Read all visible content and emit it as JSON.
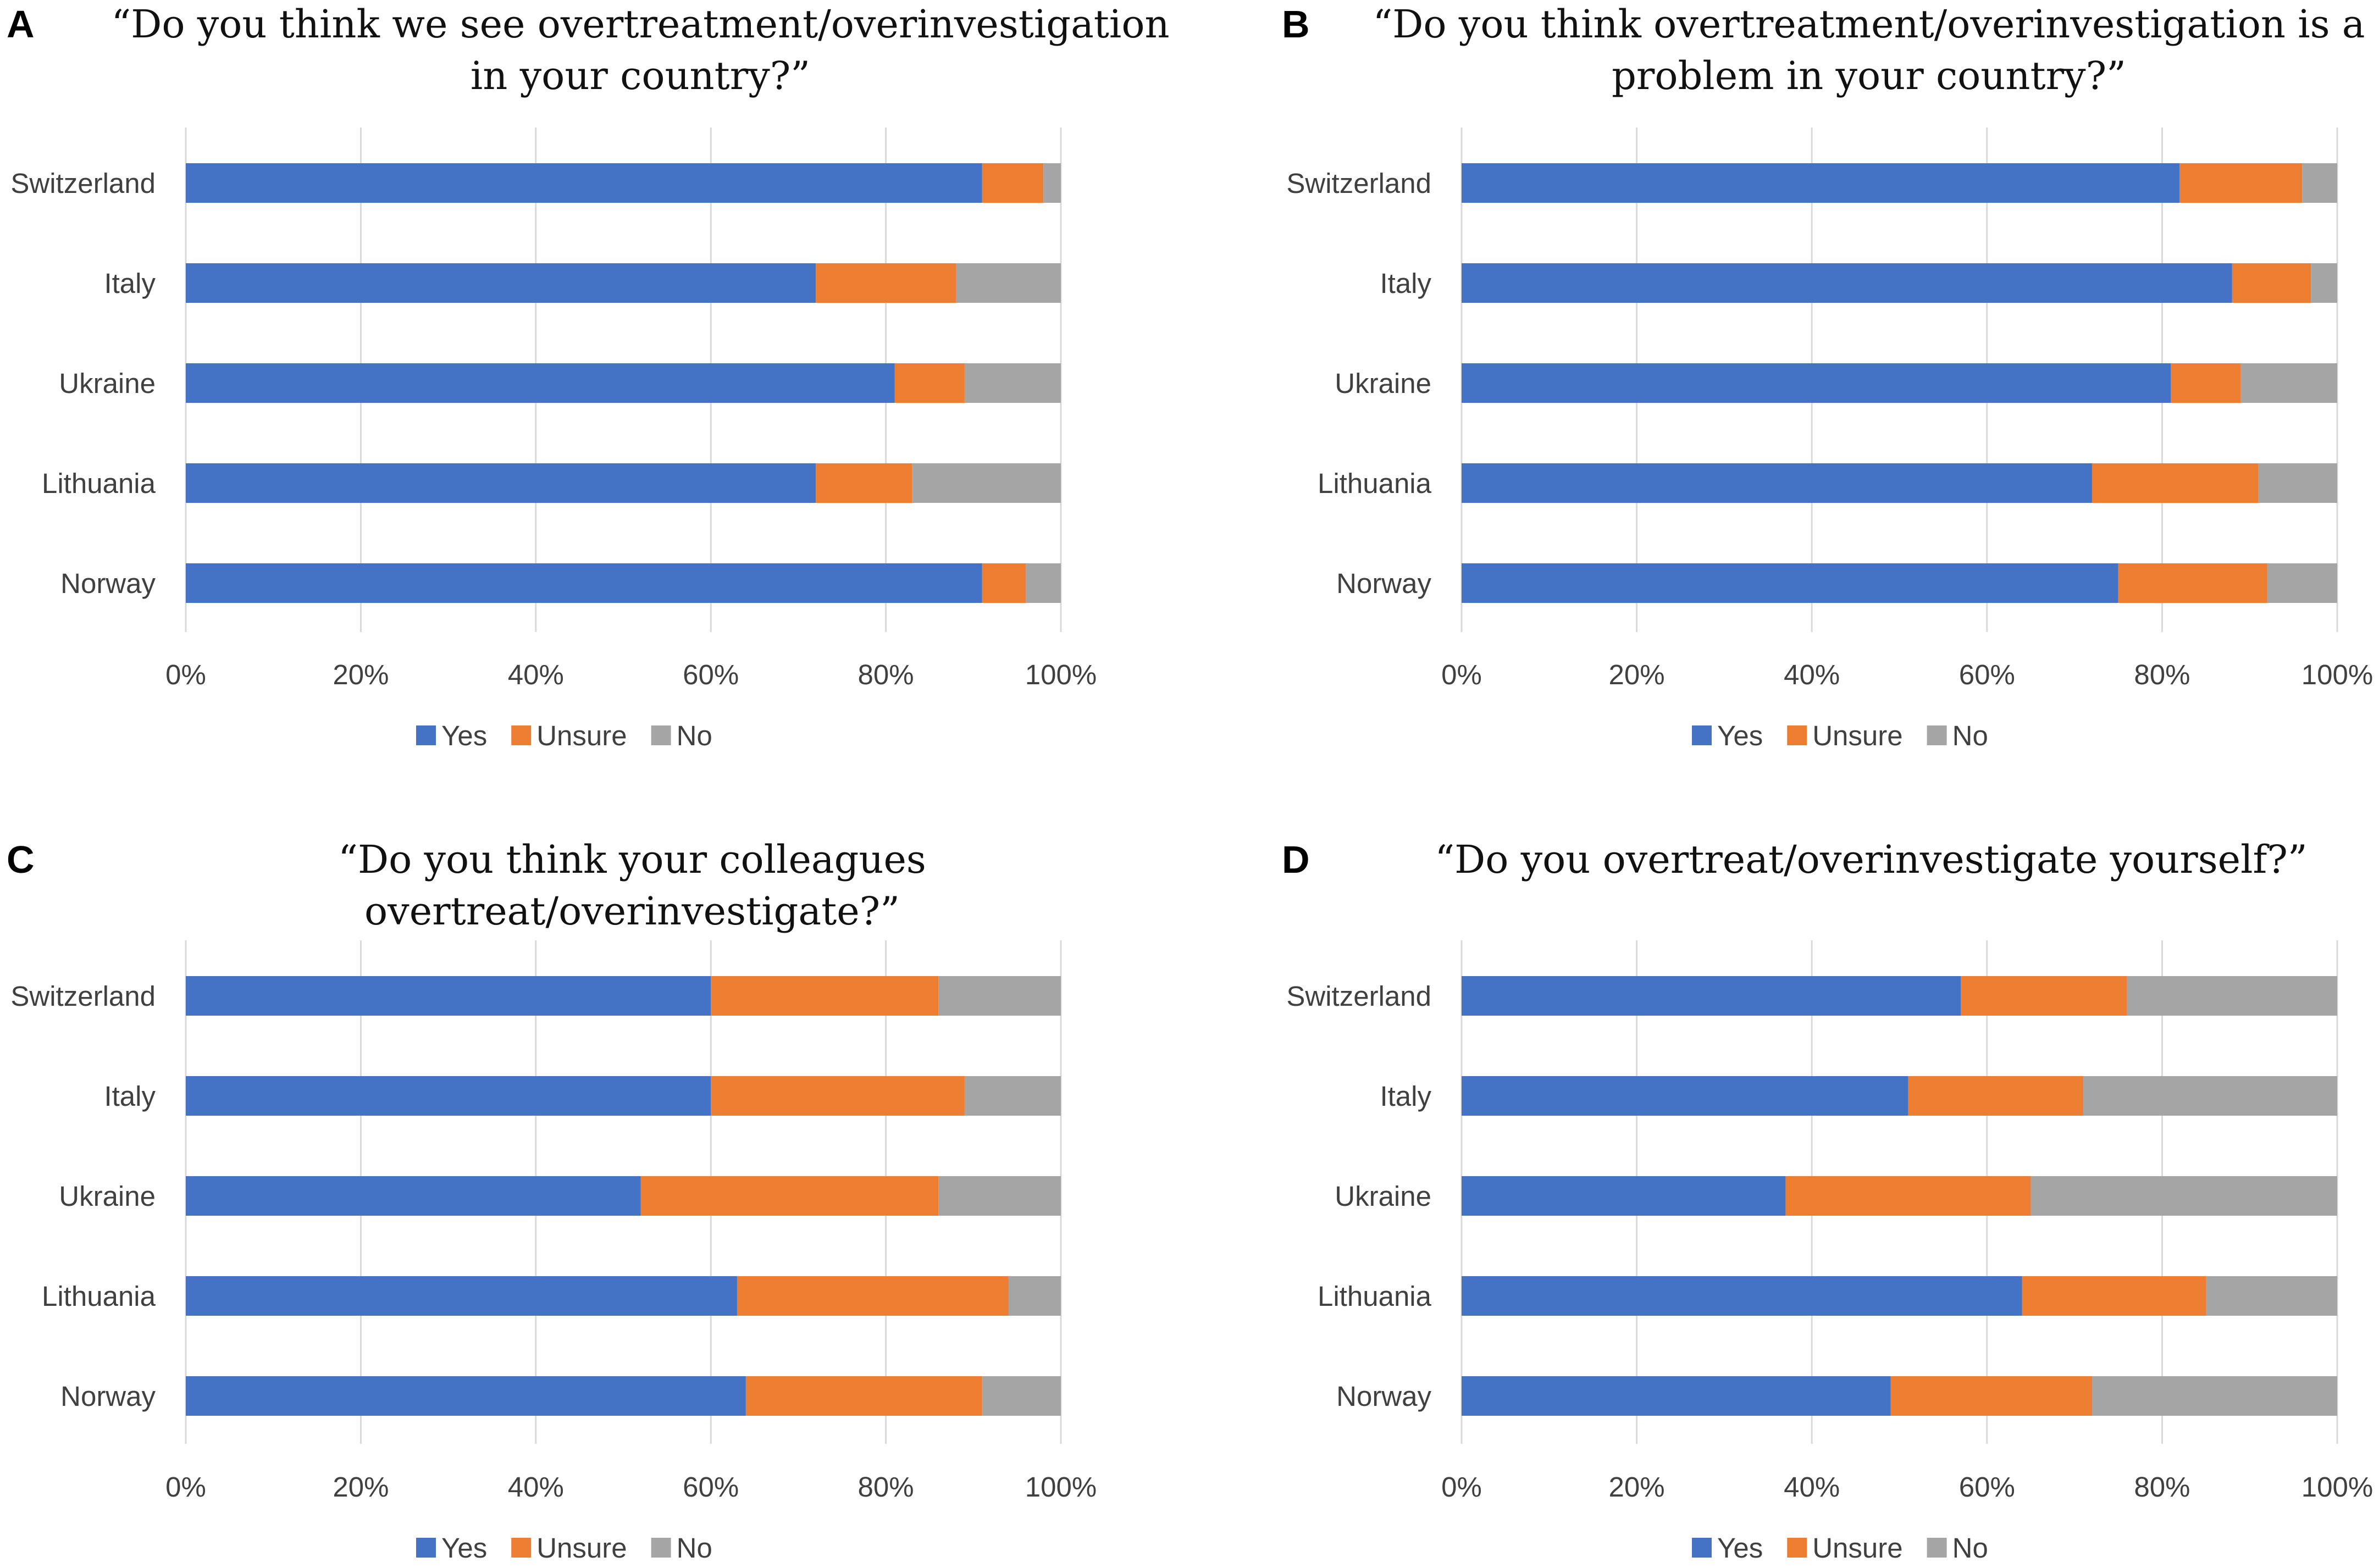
{
  "chart_data": [
    {
      "panel": "A",
      "type": "bar",
      "orientation": "horizontal",
      "stacked": true,
      "title": "“Do you think we see overtreatment/overinvestigation in your country?”",
      "title_lines": [
        "“Do you think we see overtreatment/overinvestigation",
        "in your country?”"
      ],
      "categories": [
        "Switzerland",
        "Italy",
        "Ukraine",
        "Lithuania",
        "Norway"
      ],
      "series": [
        {
          "name": "Yes",
          "values": [
            91,
            72,
            81,
            72,
            91
          ]
        },
        {
          "name": "Unsure",
          "values": [
            7,
            16,
            8,
            11,
            5
          ]
        },
        {
          "name": "No",
          "values": [
            2,
            12,
            11,
            17,
            4
          ]
        }
      ],
      "xlim": [
        0,
        100
      ],
      "xticks": [
        "0%",
        "20%",
        "40%",
        "60%",
        "80%",
        "100%"
      ],
      "grid": true,
      "legend": "bottom"
    },
    {
      "panel": "B",
      "type": "bar",
      "orientation": "horizontal",
      "stacked": true,
      "title": "“Do you think overtreatment/overinvestigation is a problem in your country?”",
      "title_lines": [
        "“Do you think overtreatment/overinvestigation is a",
        "problem in your country?”"
      ],
      "categories": [
        "Switzerland",
        "Italy",
        "Ukraine",
        "Lithuania",
        "Norway"
      ],
      "series": [
        {
          "name": "Yes",
          "values": [
            82,
            88,
            81,
            72,
            75
          ]
        },
        {
          "name": "Unsure",
          "values": [
            14,
            9,
            8,
            19,
            17
          ]
        },
        {
          "name": "No",
          "values": [
            4,
            3,
            11,
            9,
            8
          ]
        }
      ],
      "xlim": [
        0,
        100
      ],
      "xticks": [
        "0%",
        "20%",
        "40%",
        "60%",
        "80%",
        "100%"
      ],
      "grid": true,
      "legend": "bottom"
    },
    {
      "panel": "C",
      "type": "bar",
      "orientation": "horizontal",
      "stacked": true,
      "title": "“Do you think your colleagues overtreat/overinvestigate?”",
      "title_lines": [
        "“Do you think your colleagues",
        "overtreat/overinvestigate?”"
      ],
      "categories": [
        "Switzerland",
        "Italy",
        "Ukraine",
        "Lithuania",
        "Norway"
      ],
      "series": [
        {
          "name": "Yes",
          "values": [
            60,
            60,
            52,
            63,
            64
          ]
        },
        {
          "name": "Unsure",
          "values": [
            26,
            29,
            34,
            31,
            27
          ]
        },
        {
          "name": "No",
          "values": [
            14,
            11,
            14,
            6,
            9
          ]
        }
      ],
      "xlim": [
        0,
        100
      ],
      "xticks": [
        "0%",
        "20%",
        "40%",
        "60%",
        "80%",
        "100%"
      ],
      "grid": true,
      "legend": "bottom"
    },
    {
      "panel": "D",
      "type": "bar",
      "orientation": "horizontal",
      "stacked": true,
      "title": "“Do you overtreat/overinvestigate yourself?”",
      "title_lines": [
        "“Do you overtreat/overinvestigate yourself?”"
      ],
      "categories": [
        "Switzerland",
        "Italy",
        "Ukraine",
        "Lithuania",
        "Norway"
      ],
      "series": [
        {
          "name": "Yes",
          "values": [
            57,
            51,
            37,
            64,
            49
          ]
        },
        {
          "name": "Unsure",
          "values": [
            19,
            20,
            28,
            21,
            23
          ]
        },
        {
          "name": "No",
          "values": [
            24,
            29,
            35,
            15,
            28
          ]
        }
      ],
      "xlim": [
        0,
        100
      ],
      "xticks": [
        "0%",
        "20%",
        "40%",
        "60%",
        "80%",
        "100%"
      ],
      "grid": true,
      "legend": "bottom"
    }
  ],
  "colors": {
    "Yes": "#4472c4",
    "Unsure": "#ed7d31",
    "No": "#a5a5a5"
  }
}
